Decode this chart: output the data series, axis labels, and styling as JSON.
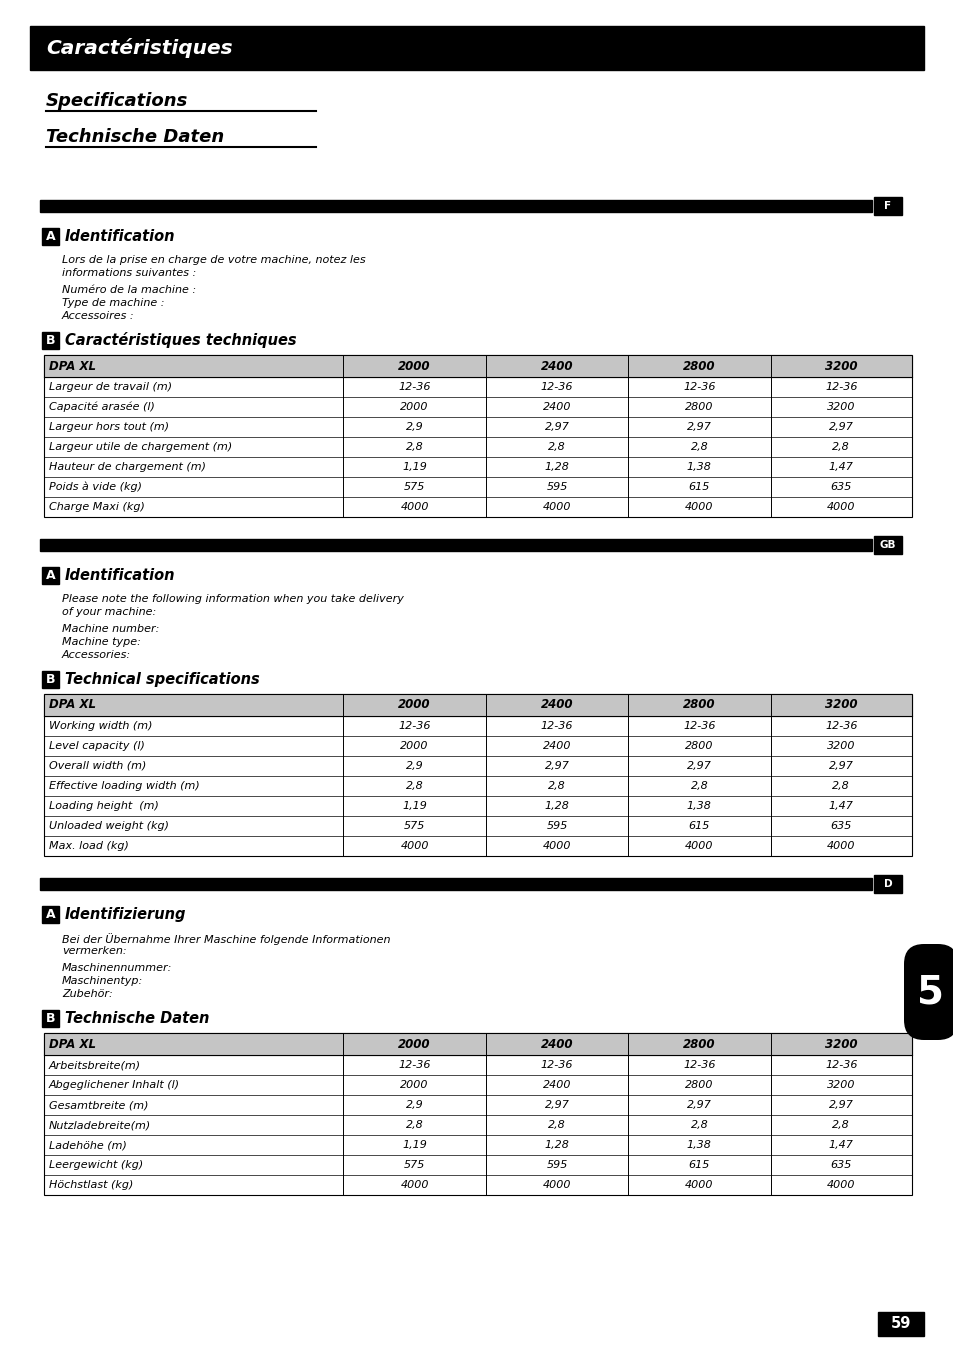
{
  "title_banner": "Caractéristiques",
  "subtitle1": "Specifications",
  "subtitle2": "Technische Daten",
  "bg_color": "#ffffff",
  "banner_color": "#000000",
  "banner_text_color": "#ffffff",
  "sections": [
    {
      "lang_tag": "F",
      "section_a_title": "Identification",
      "section_a_texts": [
        "Lors de la prise en charge de votre machine, notez les",
        "informations suivantes :",
        "Numéro de la machine :",
        "Type de machine :",
        "Accessoires :"
      ],
      "section_b_title": "Caractéristiques techniques",
      "table_headers": [
        "DPA XL",
        "2000",
        "2400",
        "2800",
        "3200"
      ],
      "table_rows": [
        [
          "Largeur de travail (m)",
          "12-36",
          "12-36",
          "12-36",
          "12-36"
        ],
        [
          "Capacité arasée (l)",
          "2000",
          "2400",
          "2800",
          "3200"
        ],
        [
          "Largeur hors tout (m)",
          "2,9",
          "2,97",
          "2,97",
          "2,97"
        ],
        [
          "Largeur utile de chargement (m)",
          "2,8",
          "2,8",
          "2,8",
          "2,8"
        ],
        [
          "Hauteur de chargement (m)",
          "1,19",
          "1,28",
          "1,38",
          "1,47"
        ],
        [
          "Poids à vide (kg)",
          "575",
          "595",
          "615",
          "635"
        ],
        [
          "Charge Maxi (kg)",
          "4000",
          "4000",
          "4000",
          "4000"
        ]
      ]
    },
    {
      "lang_tag": "GB",
      "section_a_title": "Identification",
      "section_a_texts": [
        "Please note the following information when you take delivery",
        "of your machine:",
        "Machine number:",
        "Machine type:",
        "Accessories:"
      ],
      "section_b_title": "Technical specifications",
      "table_headers": [
        "DPA XL",
        "2000",
        "2400",
        "2800",
        "3200"
      ],
      "table_rows": [
        [
          "Working width (m)",
          "12-36",
          "12-36",
          "12-36",
          "12-36"
        ],
        [
          "Level capacity (l)",
          "2000",
          "2400",
          "2800",
          "3200"
        ],
        [
          "Overall width (m)",
          "2,9",
          "2,97",
          "2,97",
          "2,97"
        ],
        [
          "Effective loading width (m)",
          "2,8",
          "2,8",
          "2,8",
          "2,8"
        ],
        [
          "Loading height  (m)",
          "1,19",
          "1,28",
          "1,38",
          "1,47"
        ],
        [
          "Unloaded weight (kg)",
          "575",
          "595",
          "615",
          "635"
        ],
        [
          "Max. load (kg)",
          "4000",
          "4000",
          "4000",
          "4000"
        ]
      ]
    },
    {
      "lang_tag": "D",
      "section_a_title": "Identifizierung",
      "section_a_texts": [
        "Bei der Übernahme Ihrer Maschine folgende Informationen",
        "vermerken:",
        "Maschinennummer:",
        "Maschinentyp:",
        "Zubehör:"
      ],
      "section_b_title": "Technische Daten",
      "table_headers": [
        "DPA XL",
        "2000",
        "2400",
        "2800",
        "3200"
      ],
      "table_rows": [
        [
          "Arbeitsbreite(m)",
          "12-36",
          "12-36",
          "12-36",
          "12-36"
        ],
        [
          "Abgeglichener Inhalt (l)",
          "2000",
          "2400",
          "2800",
          "3200"
        ],
        [
          "Gesamtbreite (m)",
          "2,9",
          "2,97",
          "2,97",
          "2,97"
        ],
        [
          "Nutzladebreite(m)",
          "2,8",
          "2,8",
          "2,8",
          "2,8"
        ],
        [
          "Ladehöhe (m)",
          "1,19",
          "1,28",
          "1,38",
          "1,47"
        ],
        [
          "Leergewicht (kg)",
          "575",
          "595",
          "615",
          "635"
        ],
        [
          "Höchstlast (kg)",
          "4000",
          "4000",
          "4000",
          "4000"
        ]
      ]
    }
  ],
  "page_number": "59",
  "chapter_number": "5"
}
